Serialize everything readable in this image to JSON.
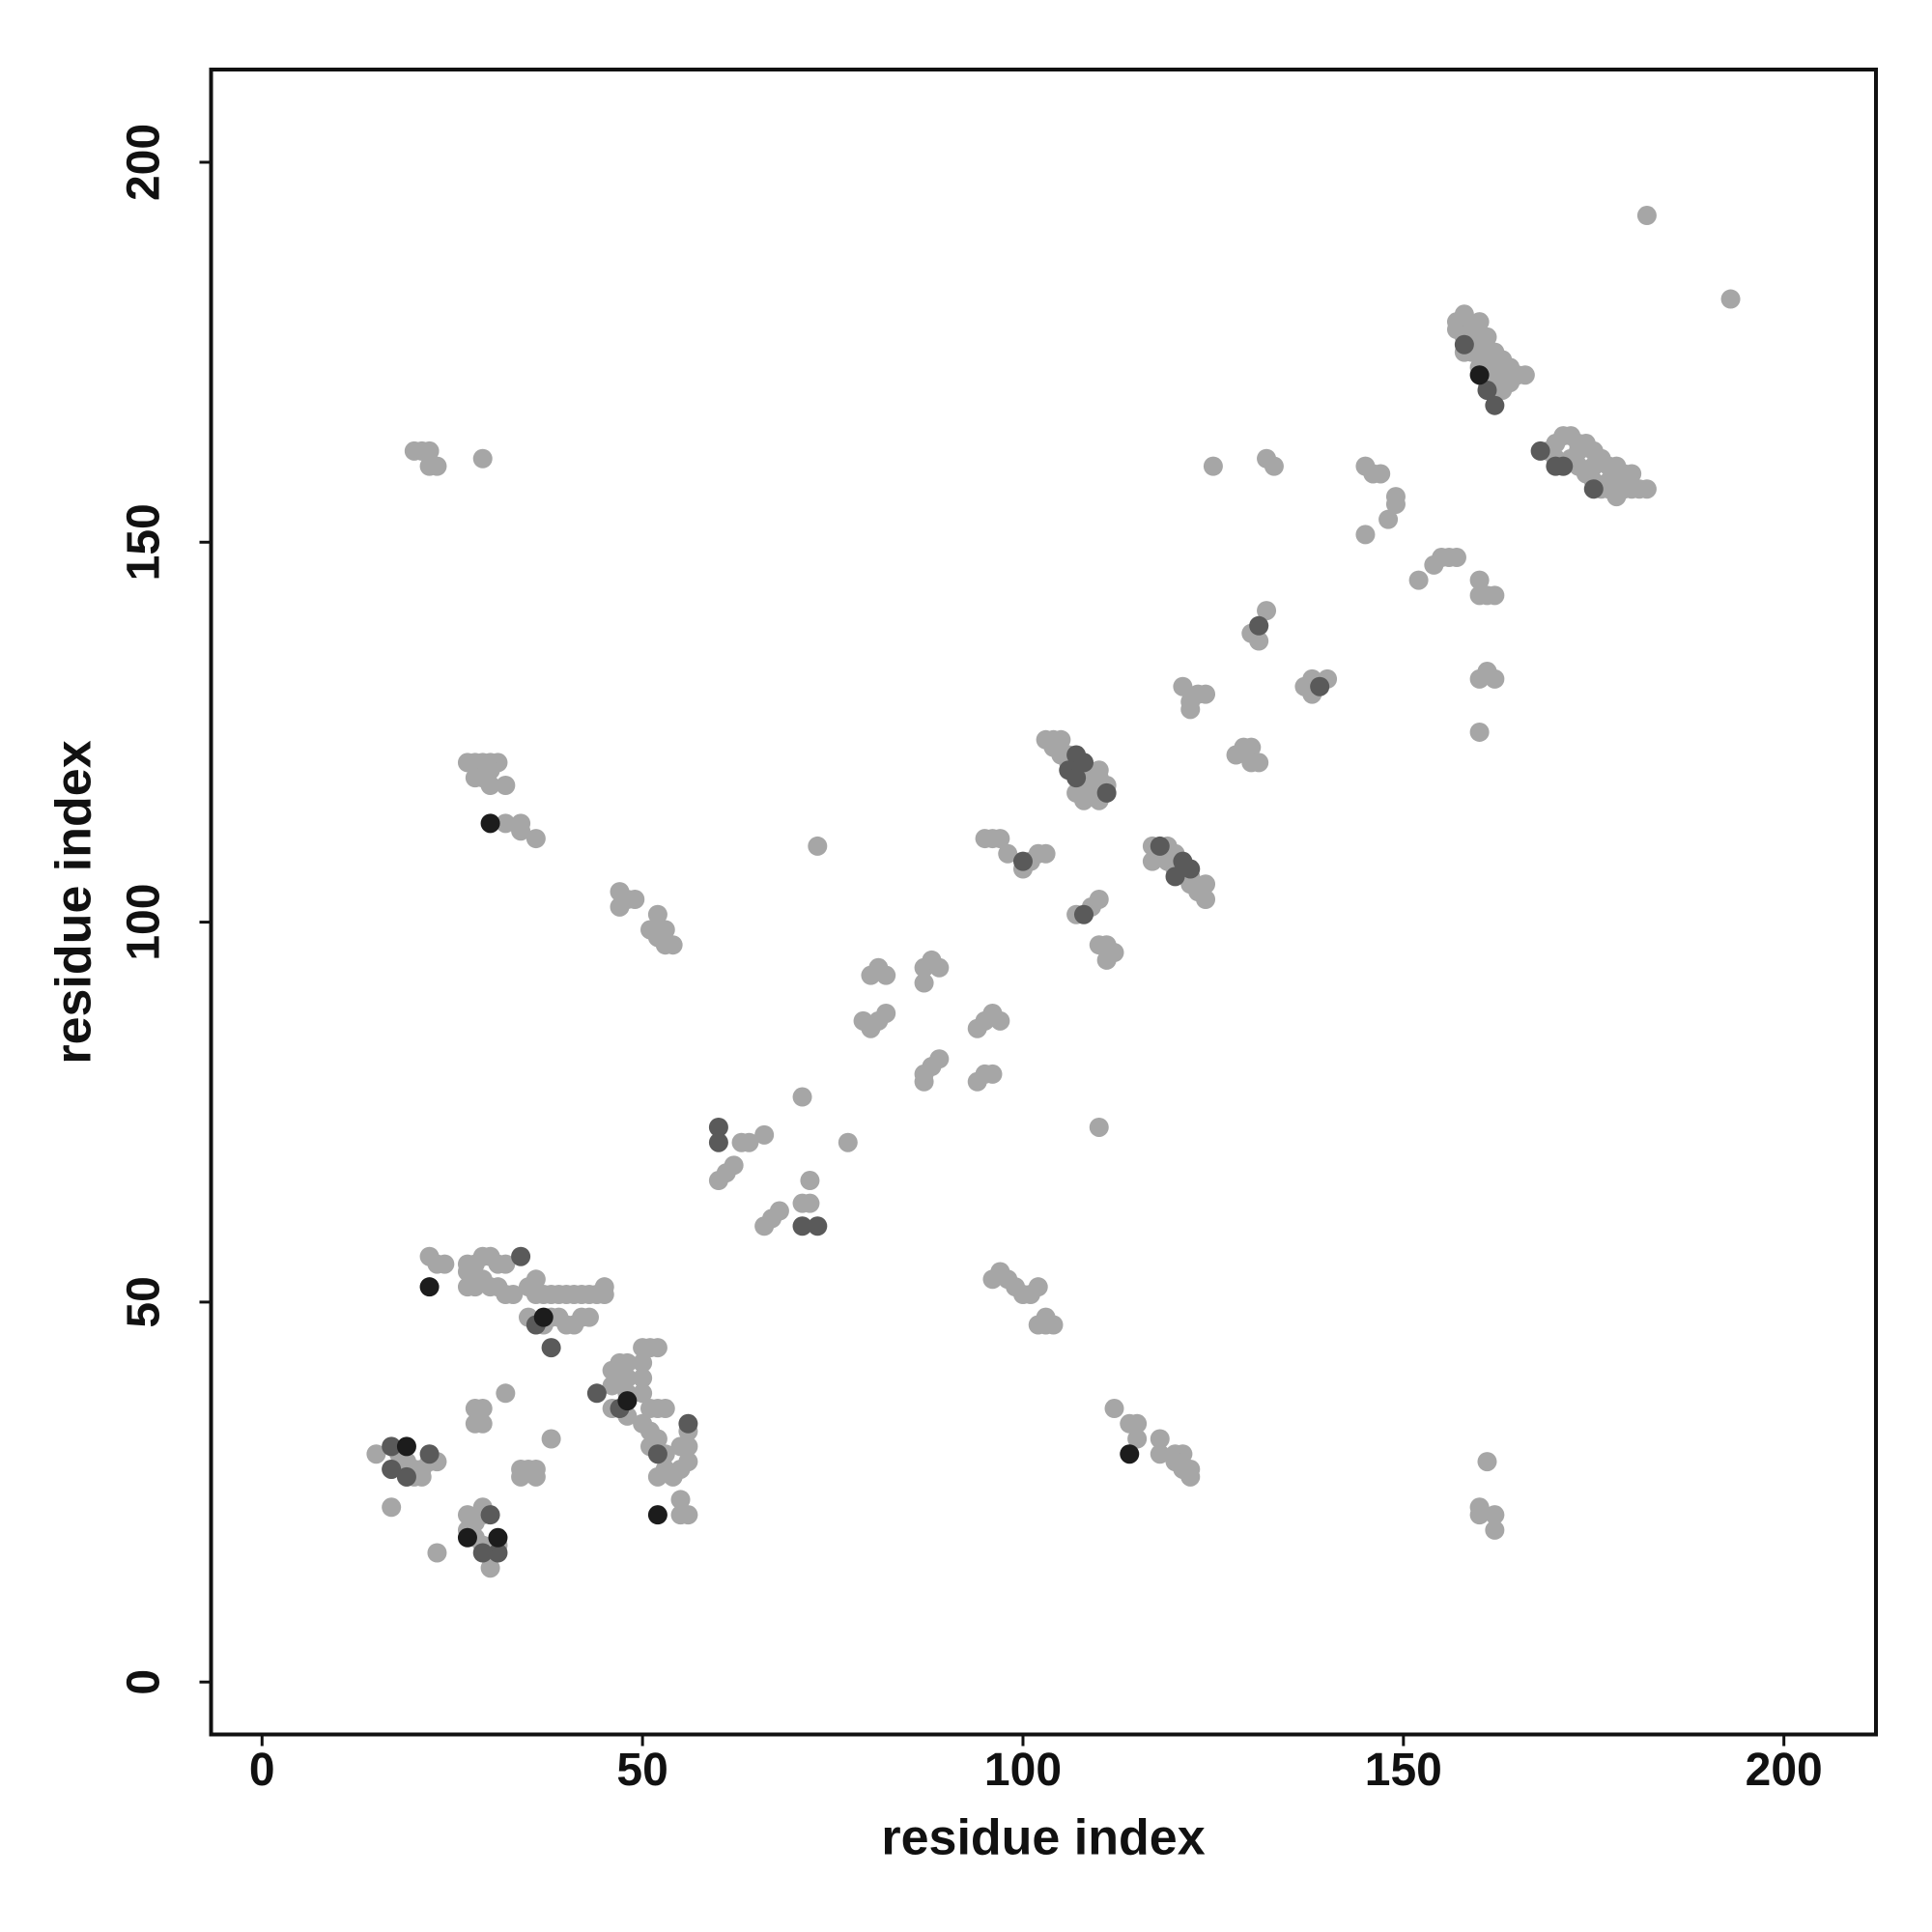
{
  "chart_data": {
    "type": "scatter",
    "xlabel": "residue index",
    "ylabel": "residue index",
    "xlim": [
      -6.7,
      212.1
    ],
    "ylim": [
      -6.9,
      212.2
    ],
    "xticks": [
      0,
      50,
      100,
      150,
      200
    ],
    "yticks": [
      0,
      50,
      100,
      150,
      200
    ],
    "series": [
      {
        "color": "#a6a6a6",
        "x": [
          182,
          193,
          157,
          157,
          158,
          158,
          159,
          160,
          160,
          161,
          161,
          162,
          162,
          163,
          163,
          164,
          164,
          165,
          159,
          160,
          161,
          162,
          163,
          166,
          158,
          169,
          170,
          171,
          172,
          173,
          174,
          175,
          176,
          177,
          178,
          179,
          180,
          181,
          182,
          170,
          172,
          173,
          174,
          175,
          176,
          177,
          178,
          179,
          171,
          173,
          175,
          177,
          180,
          145,
          146,
          147,
          149,
          149,
          148,
          145,
          152,
          154,
          155,
          156,
          157,
          160,
          160,
          161,
          162,
          160,
          161,
          162,
          160,
          132,
          133,
          125,
          131,
          132,
          131,
          130,
          137,
          138,
          138,
          140,
          121,
          122,
          123,
          124,
          122,
          128,
          129,
          130,
          130,
          131,
          103,
          104,
          105,
          104,
          105,
          106,
          107,
          106,
          108,
          109,
          110,
          110,
          107,
          108,
          109,
          110,
          108,
          111,
          117,
          118,
          119,
          120,
          121,
          122,
          123,
          124,
          124,
          119,
          120,
          122,
          117,
          95,
          96,
          97,
          98,
          100,
          101,
          102,
          103,
          107,
          109,
          110,
          110,
          111,
          111,
          112,
          73,
          80,
          81,
          82,
          79,
          80,
          81,
          82,
          87,
          87,
          88,
          89,
          94,
          95,
          96,
          97,
          87,
          88,
          89,
          87,
          94,
          95,
          96,
          60,
          61,
          62,
          63,
          64,
          66,
          66,
          67,
          68,
          71,
          71,
          72,
          72,
          77,
          110,
          96,
          97,
          98,
          99,
          100,
          101,
          102,
          103,
          103,
          104,
          102,
          112,
          114,
          115,
          115,
          118,
          118,
          120,
          121,
          122,
          122,
          120,
          121,
          161,
          160,
          160,
          162,
          162,
          20,
          21,
          22,
          22,
          23,
          29,
          27,
          28,
          29,
          30,
          31,
          28,
          29,
          30,
          30,
          32,
          32,
          34,
          34,
          36,
          47,
          48,
          49,
          47,
          52,
          53,
          51,
          52,
          53,
          54,
          22,
          23,
          24,
          27,
          28,
          29,
          30,
          31,
          27,
          27,
          28,
          29,
          30,
          31,
          32,
          33,
          35,
          36,
          36,
          37,
          38,
          39,
          40,
          41,
          42,
          43,
          44,
          45,
          45,
          35,
          37,
          38,
          39,
          40,
          41,
          42,
          43,
          32,
          46,
          47,
          48,
          46,
          47,
          48,
          48,
          46,
          48,
          50,
          51,
          52,
          50,
          50,
          50,
          51,
          52,
          50,
          51,
          52,
          53,
          53,
          54,
          55,
          56,
          56,
          56,
          55,
          55,
          55,
          56,
          52,
          53,
          51,
          32,
          28,
          29,
          28,
          29,
          34,
          35,
          34,
          36,
          36,
          38,
          15,
          17,
          18,
          19,
          20,
          21,
          22,
          23,
          19,
          20,
          21,
          17,
          23,
          27,
          27,
          28,
          28,
          29,
          29,
          29,
          30,
          30,
          31
        ],
        "y": [
          193,
          182,
          179,
          178,
          180,
          177,
          178,
          179,
          176,
          177,
          174,
          175,
          173,
          174,
          172,
          173,
          171,
          172,
          175,
          173,
          171,
          170,
          170,
          172,
          175,
          162,
          163,
          164,
          164,
          163,
          163,
          162,
          161,
          160,
          160,
          159,
          159,
          157,
          157,
          161,
          161,
          160,
          159,
          158,
          157,
          157,
          156,
          157,
          160,
          162,
          160,
          158,
          157,
          160,
          159,
          159,
          156,
          155,
          153,
          151,
          145,
          147,
          148,
          148,
          148,
          145,
          143,
          143,
          143,
          132,
          133,
          132,
          125,
          161,
          160,
          160,
          139,
          141,
          137,
          138,
          131,
          130,
          132,
          132,
          131,
          129,
          130,
          130,
          128,
          122,
          123,
          123,
          121,
          121,
          124,
          124,
          124,
          123,
          122,
          121,
          121,
          122,
          121,
          119,
          119,
          120,
          117,
          116,
          117,
          116,
          118,
          118,
          110,
          109,
          110,
          109,
          107,
          105,
          104,
          103,
          105,
          108,
          107,
          106,
          108,
          111,
          111,
          111,
          109,
          107,
          108,
          109,
          109,
          101,
          102,
          103,
          97,
          97,
          95,
          96,
          110,
          93,
          94,
          93,
          87,
          86,
          87,
          88,
          92,
          94,
          95,
          94,
          86,
          87,
          88,
          87,
          80,
          81,
          82,
          79,
          79,
          80,
          80,
          66,
          67,
          68,
          71,
          71,
          72,
          60,
          61,
          62,
          77,
          63,
          63,
          66,
          71,
          73,
          53,
          54,
          53,
          52,
          51,
          51,
          52,
          48,
          47,
          47,
          47,
          36,
          34,
          34,
          32,
          32,
          30,
          30,
          30,
          28,
          27,
          29,
          28,
          29,
          23,
          22,
          22,
          20,
          162,
          162,
          162,
          160,
          160,
          161,
          121,
          121,
          121,
          121,
          121,
          119,
          119,
          120,
          118,
          118,
          113,
          113,
          112,
          111,
          104,
          103,
          103,
          102,
          101,
          99,
          99,
          98,
          97,
          97,
          56,
          55,
          55,
          55,
          55,
          56,
          56,
          55,
          54,
          52,
          52,
          53,
          52,
          52,
          51,
          51,
          52,
          51,
          53,
          51,
          51,
          51,
          51,
          51,
          51,
          51,
          51,
          51,
          52,
          48,
          47,
          48,
          48,
          47,
          47,
          48,
          48,
          55,
          41,
          42,
          42,
          39,
          40,
          40,
          38,
          36,
          35,
          44,
          44,
          44,
          42,
          40,
          38,
          36,
          36,
          34,
          33,
          32,
          30,
          28,
          27,
          28,
          29,
          31,
          33,
          31,
          24,
          22,
          22,
          27,
          36,
          31,
          38,
          36,
          36,
          34,
          34,
          28,
          28,
          27,
          27,
          28,
          32,
          30,
          28,
          30,
          29,
          28,
          27,
          29,
          29,
          27,
          27,
          28,
          23,
          17,
          20,
          22,
          21,
          19,
          22,
          23,
          18,
          17,
          15,
          18
        ]
      },
      {
        "color": "#5a5a5a",
        "x": [
          158,
          161,
          162,
          168,
          170,
          171,
          175,
          139,
          131,
          107,
          106,
          108,
          111,
          107,
          118,
          120,
          122,
          121,
          108,
          100,
          60,
          60,
          71,
          73,
          34,
          36,
          38,
          44,
          47,
          56,
          52,
          17,
          17,
          19,
          22,
          30,
          31,
          29
        ],
        "y": [
          176,
          170,
          168,
          162,
          160,
          160,
          157,
          131,
          139,
          122,
          120,
          121,
          117,
          119,
          110,
          106,
          107,
          108,
          101,
          108,
          73,
          71,
          60,
          60,
          56,
          47,
          44,
          38,
          36,
          34,
          30,
          31,
          28,
          27,
          30,
          22,
          17,
          17
        ]
      },
      {
        "color": "#1c1c1c",
        "x": [
          160,
          114,
          30,
          22,
          37,
          48,
          52,
          19,
          27,
          31
        ],
        "y": [
          172,
          30,
          113,
          52,
          48,
          37,
          22,
          31,
          19,
          19
        ]
      }
    ]
  }
}
